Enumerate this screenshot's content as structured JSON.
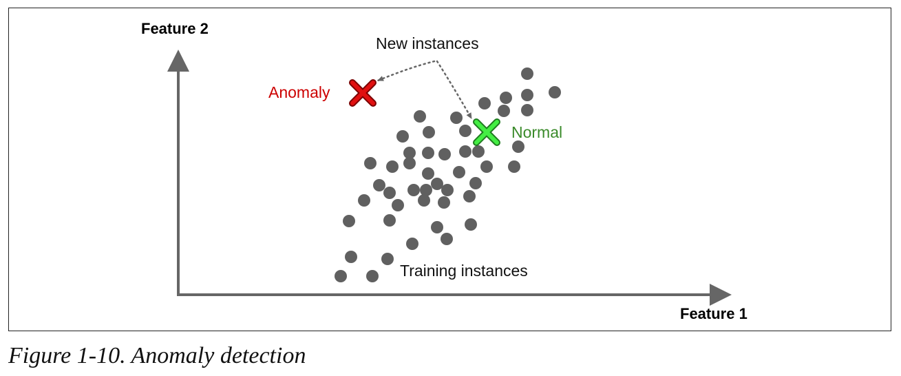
{
  "diagram": {
    "y_axis_label": "Feature 2",
    "x_axis_label": "Feature 1",
    "new_instances_label": "New instances",
    "anomaly_label": "Anomaly",
    "normal_label": "Normal",
    "training_label": "Training instances",
    "colors": {
      "axis": "#666666",
      "points": "#606060",
      "anomaly": "#cc0000",
      "normal": "#33dd33",
      "normal_text": "#3a8a2a",
      "dotted_arrow": "#666666"
    }
  },
  "caption": "Figure 1-10. Anomaly detection"
}
